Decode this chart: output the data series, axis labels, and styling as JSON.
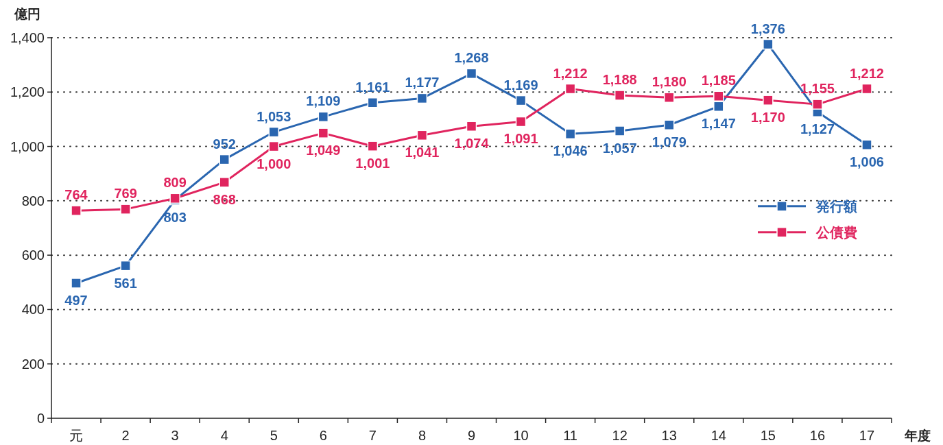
{
  "chart_data": {
    "type": "line",
    "ylabel": "億円",
    "xlabel": "年度",
    "categories": [
      "元",
      "2",
      "3",
      "4",
      "5",
      "6",
      "7",
      "8",
      "9",
      "10",
      "11",
      "12",
      "13",
      "14",
      "15",
      "16",
      "17"
    ],
    "series": [
      {
        "name": "発行額",
        "color": "#2a66b0",
        "values": [
          497,
          561,
          803,
          952,
          1053,
          1109,
          1161,
          1177,
          1268,
          1169,
          1046,
          1057,
          1079,
          1147,
          1376,
          1127,
          1006
        ],
        "value_labels": [
          "497",
          "561",
          "803",
          "952",
          "1,053",
          "1,109",
          "1,161",
          "1,177",
          "1,268",
          "1,169",
          "1,046",
          "1,057",
          "1,079",
          "1,147",
          "1,376",
          "1,127",
          "1,006"
        ]
      },
      {
        "name": "公債費",
        "color": "#e0245e",
        "values": [
          764,
          769,
          809,
          868,
          1000,
          1049,
          1001,
          1041,
          1074,
          1091,
          1212,
          1188,
          1180,
          1185,
          1170,
          1155,
          1212
        ],
        "value_labels": [
          "764",
          "769",
          "809",
          "868",
          "1,000",
          "1,049",
          "1,001",
          "1,041",
          "1,074",
          "1,091",
          "1,212",
          "1,188",
          "1,180",
          "1,185",
          "1,170",
          "1,155",
          "1,212"
        ]
      }
    ],
    "ylim": [
      0,
      1400
    ],
    "yticks": [
      0,
      200,
      400,
      600,
      800,
      {
        "value": 1000,
        "label": "1,000"
      },
      {
        "value": 1200,
        "label": "1,200"
      },
      {
        "value": 1400,
        "label": "1,400"
      }
    ],
    "grid": "y",
    "legend": "right",
    "marker": "square",
    "line_style": "solid"
  }
}
